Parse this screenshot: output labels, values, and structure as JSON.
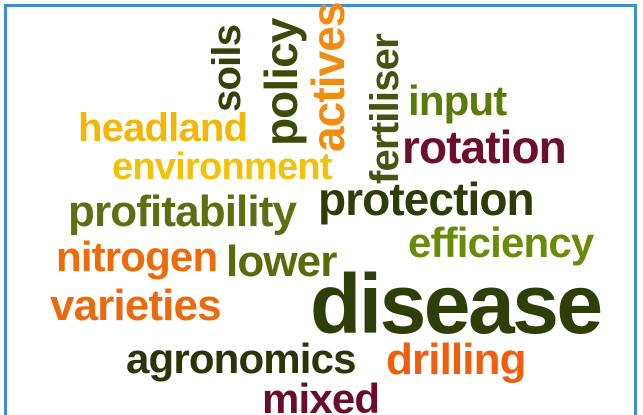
{
  "word_cloud": {
    "words": [
      {
        "key": "headland",
        "text": "headland",
        "color": "#f2b705"
      },
      {
        "key": "soils",
        "text": "soils",
        "color": "#34420a"
      },
      {
        "key": "policy",
        "text": "policy",
        "color": "#3c4a0a"
      },
      {
        "key": "actives",
        "text": "actives",
        "color": "#f28c10"
      },
      {
        "key": "fertiliser",
        "text": "fertiliser",
        "color": "#4a5212"
      },
      {
        "key": "input",
        "text": "input",
        "color": "#5a7a0a"
      },
      {
        "key": "rotation",
        "text": "rotation",
        "color": "#6b0f2a"
      },
      {
        "key": "environment",
        "text": "environment",
        "color": "#f2c20a"
      },
      {
        "key": "protection",
        "text": "protection",
        "color": "#2e3c08"
      },
      {
        "key": "profitability",
        "text": "profitability",
        "color": "#5f6e12"
      },
      {
        "key": "efficiency",
        "text": "efficiency",
        "color": "#6a8a0a"
      },
      {
        "key": "nitrogen",
        "text": "nitrogen",
        "color": "#ef6a0c"
      },
      {
        "key": "lower",
        "text": "lower",
        "color": "#5d6a0c"
      },
      {
        "key": "disease",
        "text": "disease",
        "color": "#2f3d08"
      },
      {
        "key": "varieties",
        "text": "varieties",
        "color": "#ec6a0e"
      },
      {
        "key": "agronomics",
        "text": "agronomics",
        "color": "#2c3408"
      },
      {
        "key": "drilling",
        "text": "drilling",
        "color": "#ef5f10"
      },
      {
        "key": "mixed",
        "text": "mixed",
        "color": "#6a0c2c"
      }
    ]
  }
}
